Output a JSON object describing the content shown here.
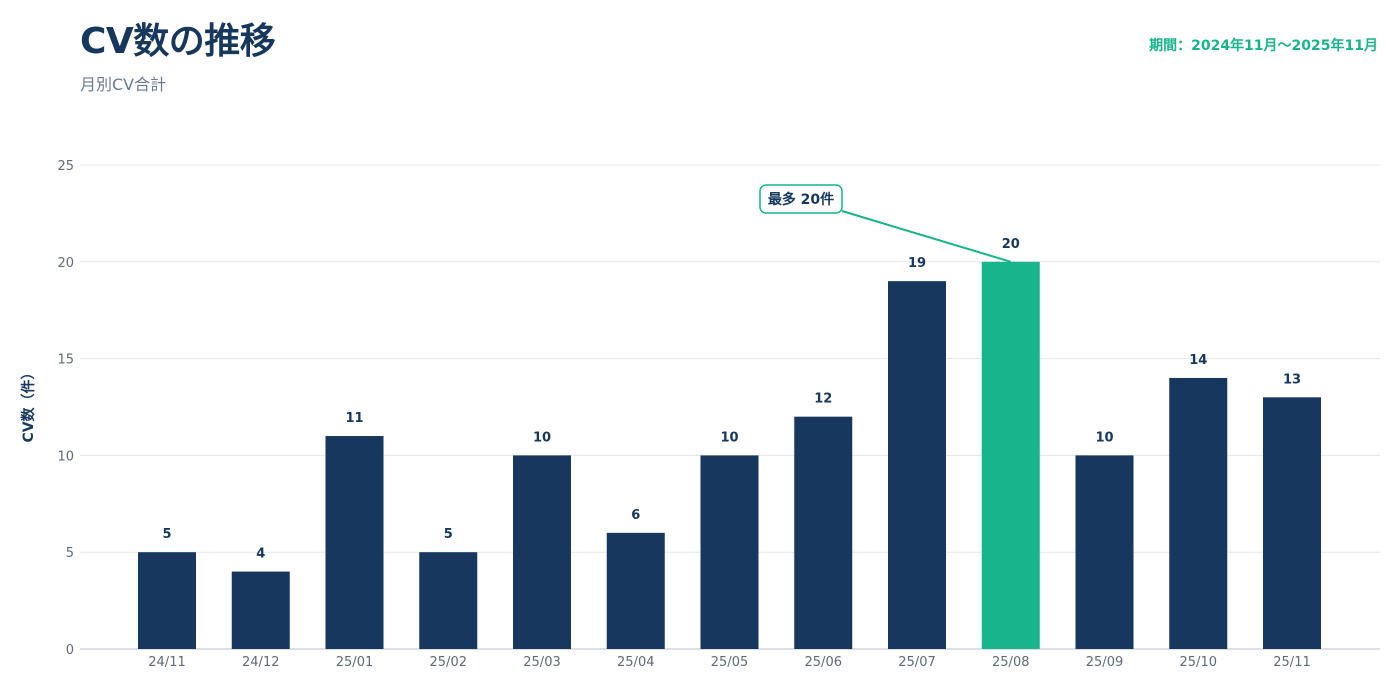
{
  "header": {
    "title": "CV数の推移",
    "subtitle": "月別CV合計",
    "period": "期間：2024年11月〜2025年11月"
  },
  "colors": {
    "bar": "#17375e",
    "highlight": "#18b48c"
  },
  "chart_data": {
    "type": "bar",
    "title": "CV数の推移",
    "subtitle": "月別CV合計",
    "xlabel": "",
    "ylabel": "CV数（件）",
    "categories": [
      "24/11",
      "24/12",
      "25/01",
      "25/02",
      "25/03",
      "25/04",
      "25/05",
      "25/06",
      "25/07",
      "25/08",
      "25/09",
      "25/10",
      "25/11"
    ],
    "values": [
      5,
      4,
      11,
      5,
      10,
      6,
      10,
      12,
      19,
      20,
      10,
      14,
      13
    ],
    "ylim": [
      0,
      25
    ],
    "yticks": [
      0,
      5,
      10,
      15,
      20,
      25
    ],
    "grid": true,
    "highlight_index": 9,
    "annotation": {
      "text": "最多 20件",
      "category": "25/08"
    }
  }
}
